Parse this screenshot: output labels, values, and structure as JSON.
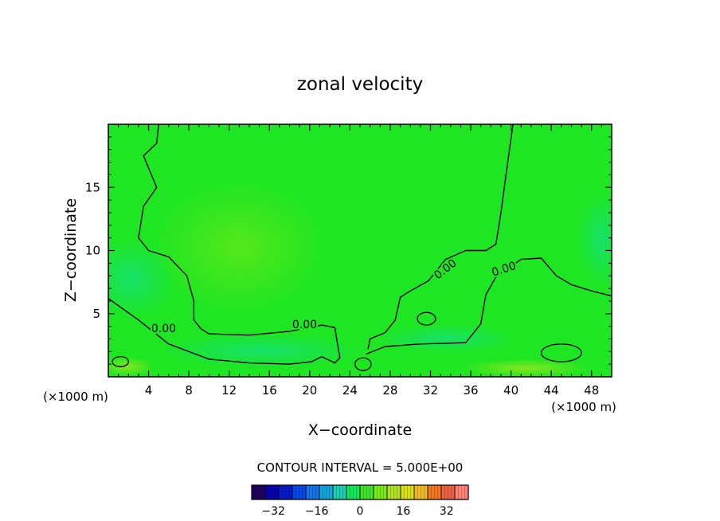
{
  "chart_data": {
    "type": "heatmap",
    "title": "zonal velocity",
    "xlabel": "X−coordinate",
    "ylabel": "Z−coordinate",
    "x_unit_left": "(×1000 m)",
    "x_unit_right": "(×1000 m)",
    "xlim": [
      0,
      50
    ],
    "ylim": [
      0,
      20
    ],
    "x_ticks": [
      4,
      8,
      12,
      16,
      20,
      24,
      28,
      32,
      36,
      40,
      44,
      48
    ],
    "y_ticks": [
      5,
      10,
      15
    ],
    "contour_interval_text": "CONTOUR INTERVAL = 5.000E+00",
    "contour_label": "0.00",
    "colorbar_range": [
      -40,
      40
    ],
    "colorbar_step": 5,
    "colorbar_ticks": [
      -32,
      -16,
      0,
      16,
      32
    ],
    "field_color": "#1ee622",
    "zero_contours": [
      {
        "name": "left-zero-line",
        "points": [
          [
            5,
            20
          ],
          [
            4.8,
            18.5
          ],
          [
            3.5,
            17.5
          ],
          [
            4.8,
            15
          ],
          [
            3.5,
            13.5
          ],
          [
            3,
            11
          ],
          [
            4,
            10
          ],
          [
            6,
            9.5
          ],
          [
            7.8,
            8
          ],
          [
            8.5,
            6
          ],
          [
            8.5,
            4.5
          ],
          [
            9.2,
            3.8
          ],
          [
            10,
            3.4
          ],
          [
            14,
            3.3
          ],
          [
            18,
            3.6
          ],
          [
            21.2,
            4.1
          ],
          [
            22.5,
            3.9
          ],
          [
            23,
            1.5
          ],
          [
            22.5,
            1.1
          ],
          [
            21.2,
            1.6
          ],
          [
            20.2,
            1.2
          ],
          [
            18,
            1
          ],
          [
            14,
            1.1
          ],
          [
            10,
            1.4
          ],
          [
            6,
            2.6
          ],
          [
            3,
            4.5
          ],
          [
            0,
            6.2
          ]
        ]
      },
      {
        "name": "right-zero-line",
        "points": [
          [
            40.2,
            20
          ],
          [
            39.5,
            16
          ],
          [
            39,
            13
          ],
          [
            38.5,
            10.5
          ],
          [
            37.5,
            10
          ],
          [
            35.5,
            10
          ],
          [
            33.5,
            9.3
          ],
          [
            31.8,
            7.6
          ],
          [
            30,
            6.8
          ],
          [
            29,
            6.3
          ],
          [
            28.5,
            4.5
          ],
          [
            27.5,
            3.5
          ],
          [
            26,
            3
          ],
          [
            25.8,
            2.2
          ]
        ]
      },
      {
        "name": "right-lower-zero-line",
        "points": [
          [
            25.6,
            1.8
          ],
          [
            27.5,
            2.4
          ],
          [
            31,
            2.6
          ],
          [
            35.5,
            2.7
          ],
          [
            37,
            4.2
          ],
          [
            37.5,
            6.5
          ],
          [
            38.5,
            7.9
          ],
          [
            41,
            9.3
          ],
          [
            43,
            9.4
          ],
          [
            44.5,
            8
          ],
          [
            46,
            7.3
          ],
          [
            48,
            6.8
          ],
          [
            50,
            6.4
          ]
        ]
      }
    ],
    "small_contours": [
      {
        "name": "zero-loop-31-5",
        "cx": 31.6,
        "cy": 4.6,
        "rx": 0.9,
        "ry": 0.5
      },
      {
        "name": "zero-loop-25-1",
        "cx": 25.3,
        "cy": 1.0,
        "rx": 0.8,
        "ry": 0.5
      },
      {
        "name": "zero-loop-44-2",
        "cx": 45.0,
        "cy": 1.9,
        "rx": 2.0,
        "ry": 0.7
      },
      {
        "name": "zero-loop-1-1",
        "cx": 1.2,
        "cy": 1.2,
        "rx": 0.8,
        "ry": 0.4
      }
    ],
    "contour_labels": [
      {
        "x": 5.5,
        "y": 3.8,
        "text": "0.00",
        "angle": 0
      },
      {
        "x": 19.5,
        "y": 4.1,
        "text": "0.00",
        "angle": 0
      },
      {
        "x": 33.5,
        "y": 8.5,
        "text": "0.00",
        "angle": -38
      },
      {
        "x": 39.3,
        "y": 8.5,
        "text": "0.00",
        "angle": -18
      }
    ]
  }
}
